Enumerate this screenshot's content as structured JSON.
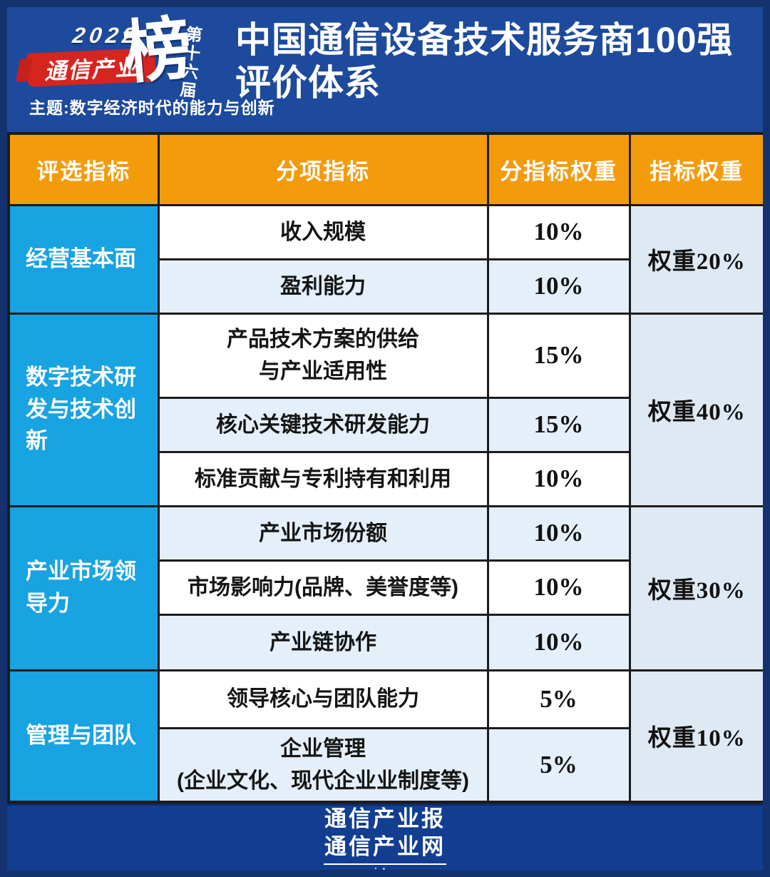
{
  "logo": {
    "year": "2022",
    "brand": "通信产业",
    "ranking_char": "榜",
    "edition": "第十六届",
    "theme": "主题:数字经济时代的能力与创新"
  },
  "header": {
    "title_line1": "中国通信设备技术服务商100强",
    "title_line2": "评价体系"
  },
  "table": {
    "columns": [
      "评选指标",
      "分项指标",
      "分指标权重",
      "指标权重"
    ],
    "groups": [
      {
        "name": "经营基本面",
        "weight": "权重20%",
        "subs": [
          {
            "label": "收入规模",
            "weight": "10%"
          },
          {
            "label": "盈利能力",
            "weight": "10%"
          }
        ]
      },
      {
        "name": "数字技术研发与技术创新",
        "weight": "权重40%",
        "subs": [
          {
            "label": "产品技术方案的供给\n与产业适用性",
            "weight": "15%"
          },
          {
            "label": "核心关键技术研发能力",
            "weight": "15%"
          },
          {
            "label": "标准贡献与专利持有和利用",
            "weight": "10%"
          }
        ]
      },
      {
        "name": "产业市场领导力",
        "weight": "权重30%",
        "subs": [
          {
            "label": "产业市场份额",
            "weight": "10%"
          },
          {
            "label": "市场影响力(品牌、美誉度等)",
            "weight": "10%"
          },
          {
            "label": "产业链协作",
            "weight": "10%"
          }
        ]
      },
      {
        "name": "管理与团队",
        "weight": "权重10%",
        "subs": [
          {
            "label": "领导核心与团队能力",
            "weight": "5%"
          },
          {
            "label": "企业管理\n(企业文化、现代企业业制度等)",
            "weight": "5%"
          }
        ]
      }
    ]
  },
  "footer": {
    "brand_paper": "通信产业报",
    "brand_web": "通信产业网",
    "website": "www.ccidcom.com"
  },
  "colors": {
    "background_blue": "#1D4A9C",
    "frame_navy": "#14326E",
    "header_orange": "#F49B0C",
    "group_cyan": "#18A3E2",
    "brand_red": "#D6251E",
    "row_light": "#E4EFF9",
    "weight_col": "#DEE9F4",
    "footer_blue": "#123E92",
    "border_black": "#1c1c1c"
  }
}
